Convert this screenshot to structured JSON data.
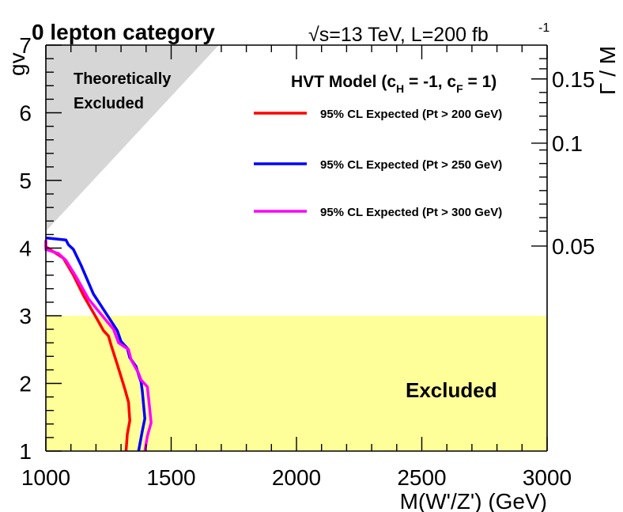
{
  "chart_data": {
    "type": "line",
    "title_left": "0 lepton category",
    "title_right": "√s=13 TeV, L=200 fb",
    "title_right_sup": "-1",
    "xlabel": "M(W'/Z') (GeV)",
    "ylabel": "gv",
    "ylabel_right": "Γ / M",
    "xlim": [
      1000,
      3000
    ],
    "ylim": [
      1,
      7
    ],
    "x_ticks": [
      1000,
      1500,
      2000,
      2500,
      3000
    ],
    "y_ticks": [
      1,
      2,
      3,
      4,
      5,
      6,
      7
    ],
    "right_axis": {
      "tick_labels": [
        "0.05",
        "0.1",
        "0.15"
      ],
      "tick_gv": [
        4.03,
        5.55,
        6.5
      ]
    },
    "legend": {
      "header_main": "HVT Model (c",
      "header_sub1": "H",
      "header_mid": " = -1, c",
      "header_sub2": "F",
      "header_end": " = 1)"
    },
    "theoretically_excluded": {
      "label_line1": "Theoretically",
      "label_line2": "Excluded",
      "color": "#d6d6d6",
      "polygon": [
        [
          1000,
          4.25
        ],
        [
          1000,
          7
        ],
        [
          1690,
          7
        ]
      ]
    },
    "excluded_region": {
      "label": "Excluded",
      "color": "#ffff99",
      "ymin": 1,
      "ymax": 3
    },
    "series": [
      {
        "name": "95% CL Expected (Pt > 200 GeV)",
        "color": "#ff0000",
        "points": [
          [
            1000,
            4.1
          ],
          [
            1000,
            4.02
          ],
          [
            1070,
            3.85
          ],
          [
            1110,
            3.6
          ],
          [
            1150,
            3.3
          ],
          [
            1200,
            2.98
          ],
          [
            1230,
            2.78
          ],
          [
            1250,
            2.7
          ],
          [
            1260,
            2.57
          ],
          [
            1285,
            2.28
          ],
          [
            1300,
            2.1
          ],
          [
            1315,
            1.92
          ],
          [
            1330,
            1.72
          ],
          [
            1335,
            1.45
          ],
          [
            1325,
            1.25
          ],
          [
            1320,
            1.0
          ]
        ]
      },
      {
        "name": "95% CL Expected (Pt > 250 GeV)",
        "color": "#0000ff",
        "points": [
          [
            1000,
            4.15
          ],
          [
            1080,
            4.12
          ],
          [
            1090,
            4.05
          ],
          [
            1110,
            3.98
          ],
          [
            1140,
            3.75
          ],
          [
            1190,
            3.32
          ],
          [
            1250,
            2.98
          ],
          [
            1285,
            2.78
          ],
          [
            1300,
            2.62
          ],
          [
            1325,
            2.52
          ],
          [
            1335,
            2.38
          ],
          [
            1360,
            2.25
          ],
          [
            1370,
            2.13
          ],
          [
            1380,
            2.02
          ],
          [
            1385,
            1.88
          ],
          [
            1390,
            1.68
          ],
          [
            1395,
            1.48
          ],
          [
            1385,
            1.3
          ],
          [
            1370,
            1.0
          ]
        ]
      },
      {
        "name": "95% CL Expected (Pt > 300 GeV)",
        "color": "#ff00ff",
        "points": [
          [
            1000,
            4.12
          ],
          [
            1000,
            3.98
          ],
          [
            1050,
            3.92
          ],
          [
            1080,
            3.82
          ],
          [
            1120,
            3.58
          ],
          [
            1170,
            3.25
          ],
          [
            1225,
            3.0
          ],
          [
            1270,
            2.8
          ],
          [
            1290,
            2.6
          ],
          [
            1330,
            2.5
          ],
          [
            1340,
            2.35
          ],
          [
            1370,
            2.15
          ],
          [
            1380,
            2.05
          ],
          [
            1405,
            1.95
          ],
          [
            1410,
            1.78
          ],
          [
            1415,
            1.6
          ],
          [
            1420,
            1.42
          ],
          [
            1405,
            1.22
          ],
          [
            1395,
            1.0
          ]
        ]
      }
    ]
  }
}
